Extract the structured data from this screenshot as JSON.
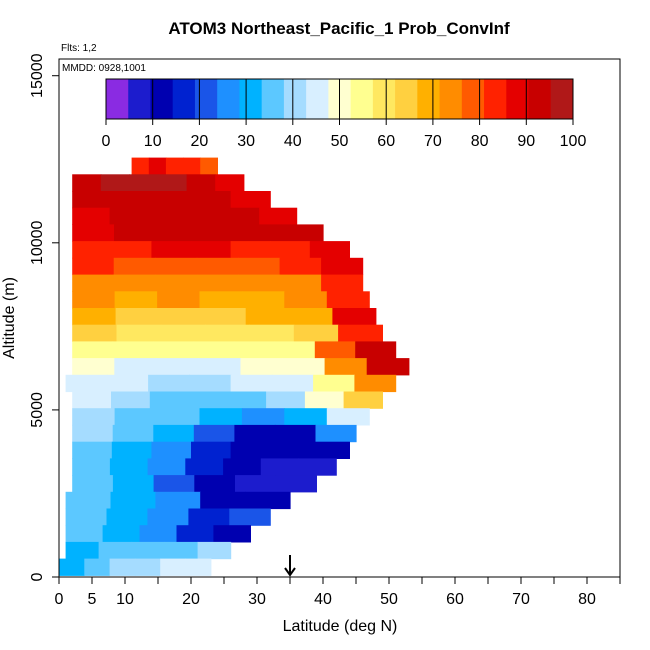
{
  "chart_data": {
    "type": "heatmap",
    "title": "ATOM3 Northeast_Pacific_1 Prob_ConvInf",
    "flights_label": "Flts: 1,2",
    "dates_label": "MMDD: 0928,1001",
    "xlabel": "Latitude (deg N)",
    "ylabel": "Altitude (m)",
    "xlim": [
      0,
      85
    ],
    "ylim": [
      0,
      15500
    ],
    "x_ticks": [
      0,
      5,
      10,
      20,
      30,
      40,
      50,
      60,
      70,
      80
    ],
    "x_minor_ticks": [
      15,
      25,
      35,
      45,
      55,
      65,
      75,
      85
    ],
    "y_ticks": [
      0,
      5000,
      10000,
      15000
    ],
    "colorbar": {
      "min": 0,
      "max": 100,
      "ticks": [
        0,
        10,
        20,
        30,
        40,
        50,
        60,
        70,
        80,
        90,
        100
      ],
      "colors": [
        "#8a2be2",
        "#1c1ccd",
        "#0000b0",
        "#0022d0",
        "#1a55e8",
        "#1e90ff",
        "#00b2ff",
        "#5cc8ff",
        "#a5dcff",
        "#d8efff",
        "#ffffd0",
        "#ffff90",
        "#ffe860",
        "#ffd040",
        "#ffb000",
        "#ff8c00",
        "#ff5a00",
        "#ff2200",
        "#e40000",
        "#c80000",
        "#b01818"
      ]
    },
    "marker_latitude": 35,
    "rows": [
      {
        "alt": 12300,
        "lat_start": 11,
        "lat_end": 24,
        "values": [
          85,
          88,
          84,
          83,
          80
        ]
      },
      {
        "alt": 11800,
        "lat_start": 2,
        "lat_end": 28,
        "values": [
          95,
          96,
          97,
          96,
          92,
          90
        ]
      },
      {
        "alt": 11300,
        "lat_start": 2,
        "lat_end": 32,
        "values": [
          92,
          94,
          93,
          92,
          90
        ]
      },
      {
        "alt": 10800,
        "lat_start": 2,
        "lat_end": 36,
        "values": [
          90,
          91,
          93,
          94,
          92,
          90
        ]
      },
      {
        "alt": 10300,
        "lat_start": 2,
        "lat_end": 40,
        "values": [
          90,
          92,
          94,
          95,
          93,
          91
        ]
      },
      {
        "alt": 9800,
        "lat_start": 2,
        "lat_end": 44,
        "values": [
          85,
          84,
          86,
          88,
          85,
          84,
          86
        ]
      },
      {
        "alt": 9300,
        "lat_start": 2,
        "lat_end": 46,
        "values": [
          82,
          80,
          78,
          80,
          79,
          81,
          90
        ]
      },
      {
        "alt": 8800,
        "lat_start": 2,
        "lat_end": 46,
        "values": [
          76,
          75,
          74,
          75,
          76,
          74,
          85
        ]
      },
      {
        "alt": 8300,
        "lat_start": 2,
        "lat_end": 47,
        "values": [
          72,
          71,
          72,
          70,
          71,
          72,
          82
        ]
      },
      {
        "alt": 7800,
        "lat_start": 2,
        "lat_end": 48,
        "values": [
          68,
          66,
          65,
          66,
          67,
          68,
          86
        ]
      },
      {
        "alt": 7300,
        "lat_start": 2,
        "lat_end": 49,
        "values": [
          62,
          60,
          58,
          60,
          61,
          62,
          82
        ]
      },
      {
        "alt": 6800,
        "lat_start": 2,
        "lat_end": 51,
        "values": [
          56,
          54,
          53,
          54,
          55,
          56,
          78,
          92
        ]
      },
      {
        "alt": 6300,
        "lat_start": 2,
        "lat_end": 53,
        "values": [
          48,
          47,
          46,
          47,
          48,
          52,
          72,
          92
        ]
      },
      {
        "alt": 5800,
        "lat_start": 1,
        "lat_end": 51,
        "values": [
          44,
          43,
          42,
          42,
          43,
          45,
          55,
          75
        ]
      },
      {
        "alt": 5300,
        "lat_start": 2,
        "lat_end": 49,
        "values": [
          45,
          40,
          38,
          38,
          38,
          40,
          48,
          65
        ]
      },
      {
        "alt": 4800,
        "lat_start": 2,
        "lat_end": 47,
        "values": [
          42,
          38,
          34,
          30,
          28,
          30,
          44
        ]
      },
      {
        "alt": 4300,
        "lat_start": 2,
        "lat_end": 45,
        "values": [
          40,
          36,
          30,
          22,
          14,
          12,
          28
        ]
      },
      {
        "alt": 3800,
        "lat_start": 2,
        "lat_end": 44,
        "values": [
          38,
          32,
          26,
          18,
          12,
          10,
          10
        ]
      },
      {
        "alt": 3300,
        "lat_start": 2,
        "lat_end": 42,
        "values": [
          36,
          30,
          24,
          16,
          10,
          8,
          5
        ]
      },
      {
        "alt": 2800,
        "lat_start": 2,
        "lat_end": 39,
        "values": [
          36,
          30,
          22,
          14,
          8,
          5
        ]
      },
      {
        "alt": 2300,
        "lat_start": 1,
        "lat_end": 35,
        "values": [
          36,
          30,
          24,
          14,
          10
        ]
      },
      {
        "alt": 1800,
        "lat_start": 1,
        "lat_end": 32,
        "values": [
          36,
          32,
          26,
          18,
          22
        ]
      },
      {
        "alt": 1300,
        "lat_start": 1,
        "lat_end": 29,
        "values": [
          36,
          32,
          26,
          18,
          14
        ]
      },
      {
        "alt": 800,
        "lat_start": 1,
        "lat_end": 26,
        "values": [
          30,
          34,
          36,
          38,
          40
        ]
      },
      {
        "alt": 300,
        "lat_start": 0,
        "lat_end": 23,
        "values": [
          30,
          36,
          40,
          42,
          44,
          46
        ]
      }
    ],
    "grid": false,
    "legend_position": "top"
  }
}
